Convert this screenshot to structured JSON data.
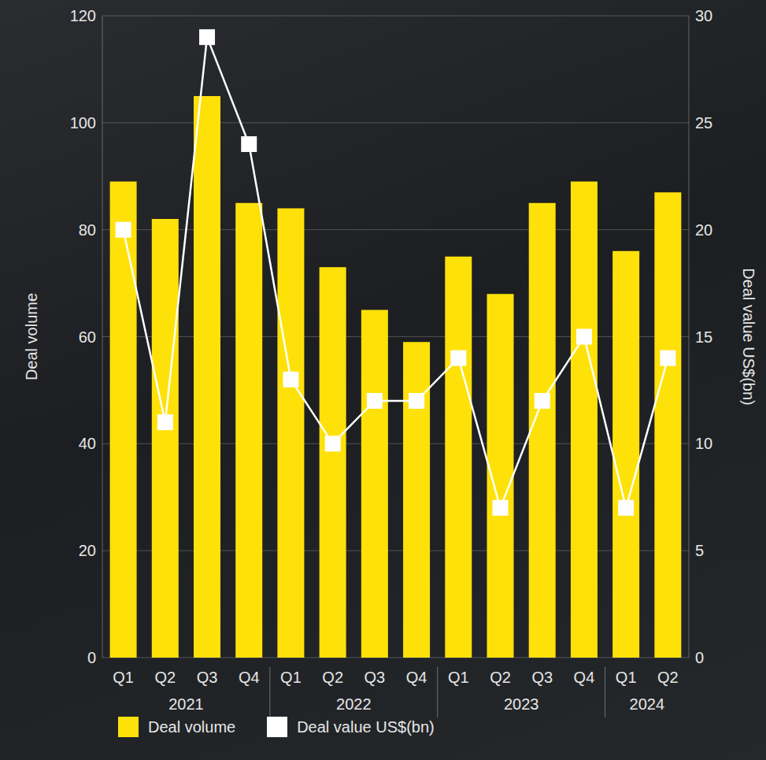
{
  "chart_data": {
    "type": "bar",
    "categories": [
      "Q1",
      "Q2",
      "Q3",
      "Q4",
      "Q1",
      "Q2",
      "Q3",
      "Q4",
      "Q1",
      "Q2",
      "Q3",
      "Q4",
      "Q1",
      "Q2"
    ],
    "groups": [
      "2021",
      "2021",
      "2021",
      "2021",
      "2022",
      "2022",
      "2022",
      "2022",
      "2023",
      "2023",
      "2023",
      "2023",
      "2024",
      "2024"
    ],
    "series": [
      {
        "name": "Deal volume",
        "type": "bar",
        "color": "#ffe10a",
        "values": [
          89,
          82,
          105,
          85,
          84,
          73,
          65,
          59,
          75,
          68,
          85,
          89,
          76,
          87
        ]
      },
      {
        "name": "Deal value US$(bn)",
        "type": "line",
        "axis": "y2",
        "color": "#ffffff",
        "marker": "square",
        "values": [
          20,
          11,
          29,
          24,
          13,
          10,
          12,
          12,
          14,
          7,
          12,
          15,
          7,
          14
        ]
      }
    ],
    "y_label": "Deal volume",
    "y2_label": "Deal value US$(bn)",
    "ylim": [
      0,
      120
    ],
    "yticks": [
      0,
      20,
      40,
      60,
      80,
      100,
      120
    ],
    "y2lim": [
      0,
      30
    ],
    "y2ticks": [
      0,
      5,
      10,
      15,
      20,
      25,
      30
    ],
    "grid": true,
    "legend": "bottom left"
  }
}
